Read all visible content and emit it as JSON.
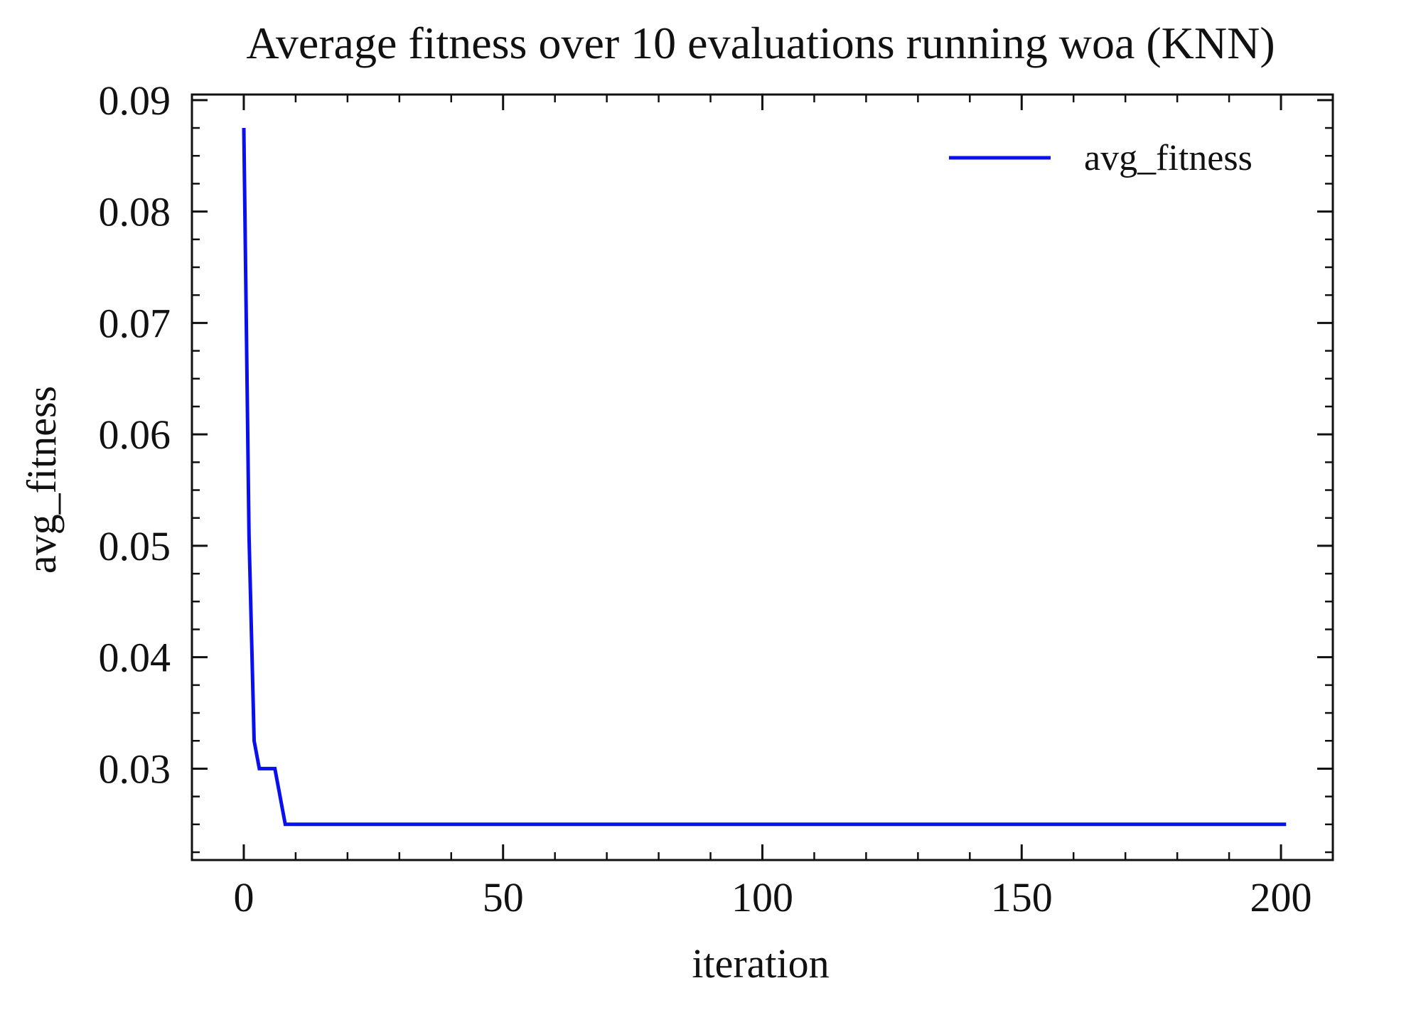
{
  "chart_data": {
    "type": "line",
    "title": "Average fitness over 10 evaluations running woa (KNN)",
    "xlabel": "iteration",
    "ylabel": "avg_fitness",
    "xlim": [
      -10,
      210
    ],
    "ylim": [
      0.0218,
      0.0905
    ],
    "xticks": [
      0,
      50,
      100,
      150,
      200
    ],
    "xtick_labels": [
      "0",
      "50",
      "100",
      "150",
      "200"
    ],
    "yticks": [
      0.03,
      0.04,
      0.05,
      0.06,
      0.07,
      0.08,
      0.09
    ],
    "ytick_labels": [
      "0.03",
      "0.04",
      "0.05",
      "0.06",
      "0.07",
      "0.08",
      "0.09"
    ],
    "grid": false,
    "legend": {
      "placement": "top-right",
      "entries": [
        "avg_fitness"
      ]
    },
    "series": [
      {
        "name": "avg_fitness",
        "color": "#0a0ff0",
        "x": [
          0,
          1,
          2,
          3,
          4,
          5,
          6,
          7,
          8,
          9,
          10,
          20,
          50,
          100,
          150,
          200,
          201
        ],
        "y": [
          0.0875,
          0.051,
          0.0325,
          0.03,
          0.03,
          0.03,
          0.03,
          0.0275,
          0.025,
          0.025,
          0.025,
          0.025,
          0.025,
          0.025,
          0.025,
          0.025,
          0.025
        ]
      }
    ]
  }
}
